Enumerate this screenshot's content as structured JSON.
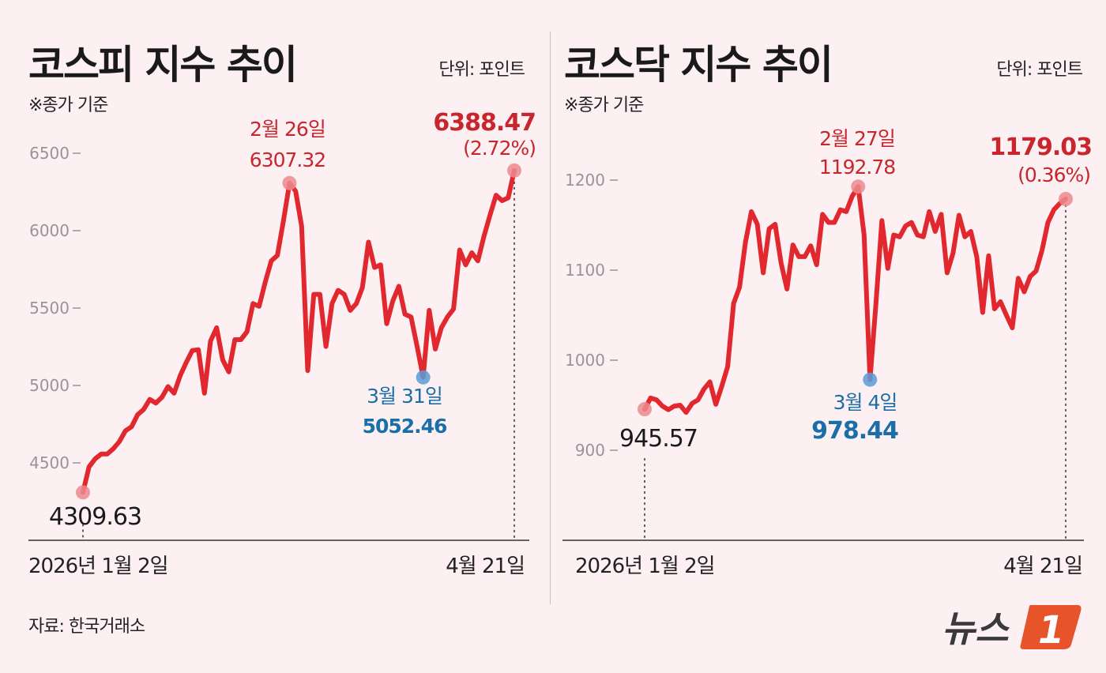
{
  "source": "자료: 한국거래소",
  "logo_text": "뉴스1",
  "colors": {
    "background": "#fcf0f3",
    "line": "#e0282e",
    "high": "#c8262c",
    "low": "#1a6fa8",
    "low_dot": "#5b9bd5",
    "high_dot": "#eb8a8e",
    "logo": "#e8542a"
  },
  "chart_data": [
    {
      "type": "line",
      "title": "코스피 지수 추이",
      "unit_label": "단위: 포인트",
      "note": "※종가 기준",
      "x_start_label": "2026년 1월 2일",
      "x_end_label": "4월 21일",
      "ylim": [
        4300,
        6600
      ],
      "yticks": [
        4500,
        5000,
        5500,
        6000,
        6500
      ],
      "grid": false,
      "values": [
        4309.63,
        4474,
        4526,
        4557,
        4557,
        4592,
        4638,
        4707,
        4733,
        4811,
        4846,
        4910,
        4886,
        4924,
        4993,
        4950,
        5062,
        5148,
        5226,
        5231,
        4950,
        5287,
        5373,
        5166,
        5088,
        5296,
        5296,
        5347,
        5529,
        5511,
        5667,
        5805,
        5840,
        6064,
        6307.32,
        6255,
        6030,
        5096,
        5589,
        5589,
        5252,
        5529,
        5615,
        5589,
        5485,
        5529,
        5632,
        5926,
        5762,
        5779,
        5399,
        5546,
        5641,
        5460,
        5443,
        5252,
        5052.46,
        5485,
        5235,
        5373,
        5443,
        5494,
        5875,
        5779,
        5857,
        5805,
        5961,
        6099,
        6229,
        6194,
        6212,
        6388.47
      ],
      "annotations": {
        "start": {
          "value": "4309.63"
        },
        "high": {
          "date": "2월 26일",
          "value": "6307.32"
        },
        "low": {
          "date": "3월 31일",
          "value": "5052.46"
        },
        "end": {
          "value": "6388.47",
          "change": "(2.72%)"
        }
      }
    },
    {
      "type": "line",
      "title": "코스닥 지수 추이",
      "unit_label": "단위: 포인트",
      "note": "※종가 기준",
      "x_start_label": "2026년 1월 2일",
      "x_end_label": "4월 21일",
      "ylim": [
        860,
        1230
      ],
      "yticks": [
        900,
        1000,
        1100,
        1200
      ],
      "grid": false,
      "values": [
        945.57,
        958,
        956,
        949,
        945,
        949,
        950,
        942,
        952,
        956,
        968,
        976,
        951,
        971,
        993,
        1063,
        1081,
        1131,
        1165,
        1151,
        1097,
        1146,
        1151,
        1108,
        1079,
        1128,
        1115,
        1115,
        1127,
        1106,
        1162,
        1153,
        1153,
        1167,
        1165,
        1182,
        1192.78,
        1139,
        978.44,
        1063,
        1155,
        1102,
        1139,
        1137,
        1149,
        1153,
        1139,
        1137,
        1165,
        1143,
        1162,
        1097,
        1119,
        1161,
        1137,
        1143,
        1115,
        1053,
        1116,
        1057,
        1065,
        1050,
        1036,
        1091,
        1076,
        1093,
        1099,
        1122,
        1153,
        1167,
        1174,
        1179.03
      ],
      "annotations": {
        "start": {
          "value": "945.57"
        },
        "high": {
          "date": "2월 27일",
          "value": "1192.78"
        },
        "low": {
          "date": "3월 4일",
          "value": "978.44"
        },
        "end": {
          "value": "1179.03",
          "change": "(0.36%)"
        }
      }
    }
  ]
}
